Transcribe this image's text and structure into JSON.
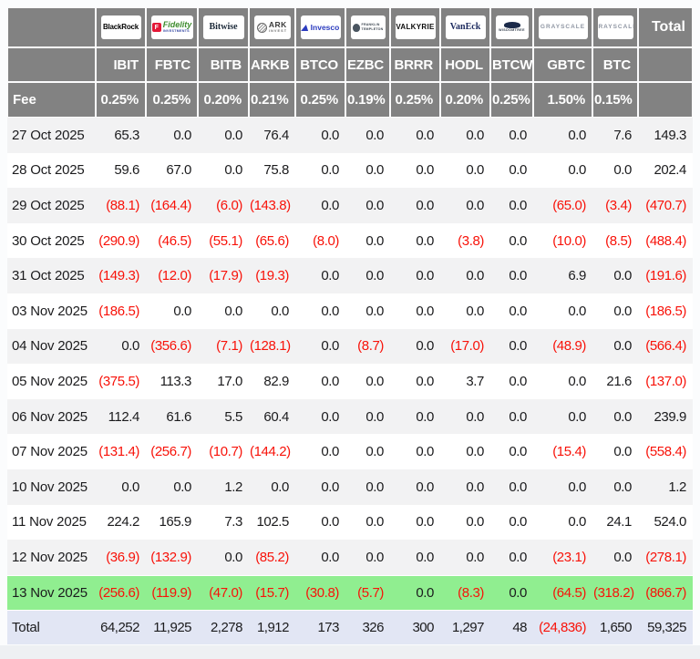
{
  "chart_data": {
    "type": "table",
    "description_of_view": "Bitcoin ETF daily flow table by issuer (values in millions, parentheses = outflows)",
    "fee_label": "Fee",
    "total_column_label": "Total",
    "providers": [
      {
        "id": "blackrock",
        "name": "BlackRock",
        "ticker": "IBIT",
        "fee": "0.25%",
        "logo_text": "BlackRock"
      },
      {
        "id": "fidelity",
        "name": "Fidelity",
        "ticker": "FBTC",
        "fee": "0.25%",
        "logo_text": "Fidelity",
        "logo_sub": "INVESTMENTS",
        "logo_icon": "F"
      },
      {
        "id": "bitwise",
        "name": "Bitwise",
        "ticker": "BITB",
        "fee": "0.20%",
        "logo_text": "Bitwise"
      },
      {
        "id": "ark",
        "name": "ARK Invest",
        "ticker": "ARKB",
        "fee": "0.21%",
        "logo_text": "ARK",
        "logo_sub": "INVEST"
      },
      {
        "id": "invesco",
        "name": "Invesco",
        "ticker": "BTCO",
        "fee": "0.25%",
        "logo_text": "Invesco"
      },
      {
        "id": "franklin",
        "name": "Franklin Templeton",
        "ticker": "EZBC",
        "fee": "0.19%",
        "logo_text": "FRANKLIN",
        "logo_sub": "TEMPLETON"
      },
      {
        "id": "valkyrie",
        "name": "Valkyrie",
        "ticker": "BRRR",
        "fee": "0.25%",
        "logo_text": "VALKYRIE"
      },
      {
        "id": "vaneck",
        "name": "VanEck",
        "ticker": "HODL",
        "fee": "0.20%",
        "logo_text": "VanEck"
      },
      {
        "id": "wisdomtree",
        "name": "WisdomTree",
        "ticker": "BTCW",
        "fee": "0.25%",
        "logo_text": "WISDOMTREE"
      },
      {
        "id": "grayscale-gbtc",
        "name": "Grayscale",
        "ticker": "GBTC",
        "fee": "1.50%",
        "logo_text": "GRAYSCALE"
      },
      {
        "id": "grayscale-btc",
        "name": "Grayscale",
        "ticker": "BTC",
        "fee": "0.15%",
        "logo_text": "GRAYSCALE"
      }
    ],
    "rows": [
      {
        "date": "27 Oct 2025",
        "highlight": false,
        "values": [
          "65.3",
          "0.0",
          "0.0",
          "76.4",
          "0.0",
          "0.0",
          "0.0",
          "0.0",
          "0.0",
          "0.0",
          "7.6",
          "149.3"
        ]
      },
      {
        "date": "28 Oct 2025",
        "highlight": false,
        "values": [
          "59.6",
          "67.0",
          "0.0",
          "75.8",
          "0.0",
          "0.0",
          "0.0",
          "0.0",
          "0.0",
          "0.0",
          "0.0",
          "202.4"
        ]
      },
      {
        "date": "29 Oct 2025",
        "highlight": false,
        "values": [
          "(88.1)",
          "(164.4)",
          "(6.0)",
          "(143.8)",
          "0.0",
          "0.0",
          "0.0",
          "0.0",
          "0.0",
          "(65.0)",
          "(3.4)",
          "(470.7)"
        ]
      },
      {
        "date": "30 Oct 2025",
        "highlight": false,
        "values": [
          "(290.9)",
          "(46.5)",
          "(55.1)",
          "(65.6)",
          "(8.0)",
          "0.0",
          "0.0",
          "(3.8)",
          "0.0",
          "(10.0)",
          "(8.5)",
          "(488.4)"
        ]
      },
      {
        "date": "31 Oct 2025",
        "highlight": false,
        "values": [
          "(149.3)",
          "(12.0)",
          "(17.9)",
          "(19.3)",
          "0.0",
          "0.0",
          "0.0",
          "0.0",
          "0.0",
          "6.9",
          "0.0",
          "(191.6)"
        ]
      },
      {
        "date": "03 Nov 2025",
        "highlight": false,
        "values": [
          "(186.5)",
          "0.0",
          "0.0",
          "0.0",
          "0.0",
          "0.0",
          "0.0",
          "0.0",
          "0.0",
          "0.0",
          "0.0",
          "(186.5)"
        ]
      },
      {
        "date": "04 Nov 2025",
        "highlight": false,
        "values": [
          "0.0",
          "(356.6)",
          "(7.1)",
          "(128.1)",
          "0.0",
          "(8.7)",
          "0.0",
          "(17.0)",
          "0.0",
          "(48.9)",
          "0.0",
          "(566.4)"
        ]
      },
      {
        "date": "05 Nov 2025",
        "highlight": false,
        "values": [
          "(375.5)",
          "113.3",
          "17.0",
          "82.9",
          "0.0",
          "0.0",
          "0.0",
          "3.7",
          "0.0",
          "0.0",
          "21.6",
          "(137.0)"
        ]
      },
      {
        "date": "06 Nov 2025",
        "highlight": false,
        "values": [
          "112.4",
          "61.6",
          "5.5",
          "60.4",
          "0.0",
          "0.0",
          "0.0",
          "0.0",
          "0.0",
          "0.0",
          "0.0",
          "239.9"
        ]
      },
      {
        "date": "07 Nov 2025",
        "highlight": false,
        "values": [
          "(131.4)",
          "(256.7)",
          "(10.7)",
          "(144.2)",
          "0.0",
          "0.0",
          "0.0",
          "0.0",
          "0.0",
          "(15.4)",
          "0.0",
          "(558.4)"
        ]
      },
      {
        "date": "10 Nov 2025",
        "highlight": false,
        "values": [
          "0.0",
          "0.0",
          "1.2",
          "0.0",
          "0.0",
          "0.0",
          "0.0",
          "0.0",
          "0.0",
          "0.0",
          "0.0",
          "1.2"
        ]
      },
      {
        "date": "11 Nov 2025",
        "highlight": false,
        "values": [
          "224.2",
          "165.9",
          "7.3",
          "102.5",
          "0.0",
          "0.0",
          "0.0",
          "0.0",
          "0.0",
          "0.0",
          "24.1",
          "524.0"
        ]
      },
      {
        "date": "12 Nov 2025",
        "highlight": false,
        "values": [
          "(36.9)",
          "(132.9)",
          "0.0",
          "(85.2)",
          "0.0",
          "0.0",
          "0.0",
          "0.0",
          "0.0",
          "(23.1)",
          "0.0",
          "(278.1)"
        ]
      },
      {
        "date": "13 Nov 2025",
        "highlight": true,
        "values": [
          "(256.6)",
          "(119.9)",
          "(47.0)",
          "(15.7)",
          "(30.8)",
          "(5.7)",
          "0.0",
          "(8.3)",
          "0.0",
          "(64.5)",
          "(318.2)",
          "(866.7)"
        ]
      }
    ],
    "total_row": {
      "label": "Total",
      "values": [
        "64,252",
        "11,925",
        "2,278",
        "1,912",
        "173",
        "326",
        "300",
        "1,297",
        "48",
        "(24,836)",
        "1,650",
        "59,325"
      ]
    },
    "colors": {
      "header_bg": "#828282",
      "stripe_bg": "#f2f2f3",
      "highlight_green": "#90ee90",
      "total_row_bg": "#e2e6f4",
      "negative_red": "#f81209",
      "fidelity_red": "#e31837",
      "fidelity_green": "#3f8d2f",
      "invesco_blue": "#2b3bbf"
    }
  }
}
